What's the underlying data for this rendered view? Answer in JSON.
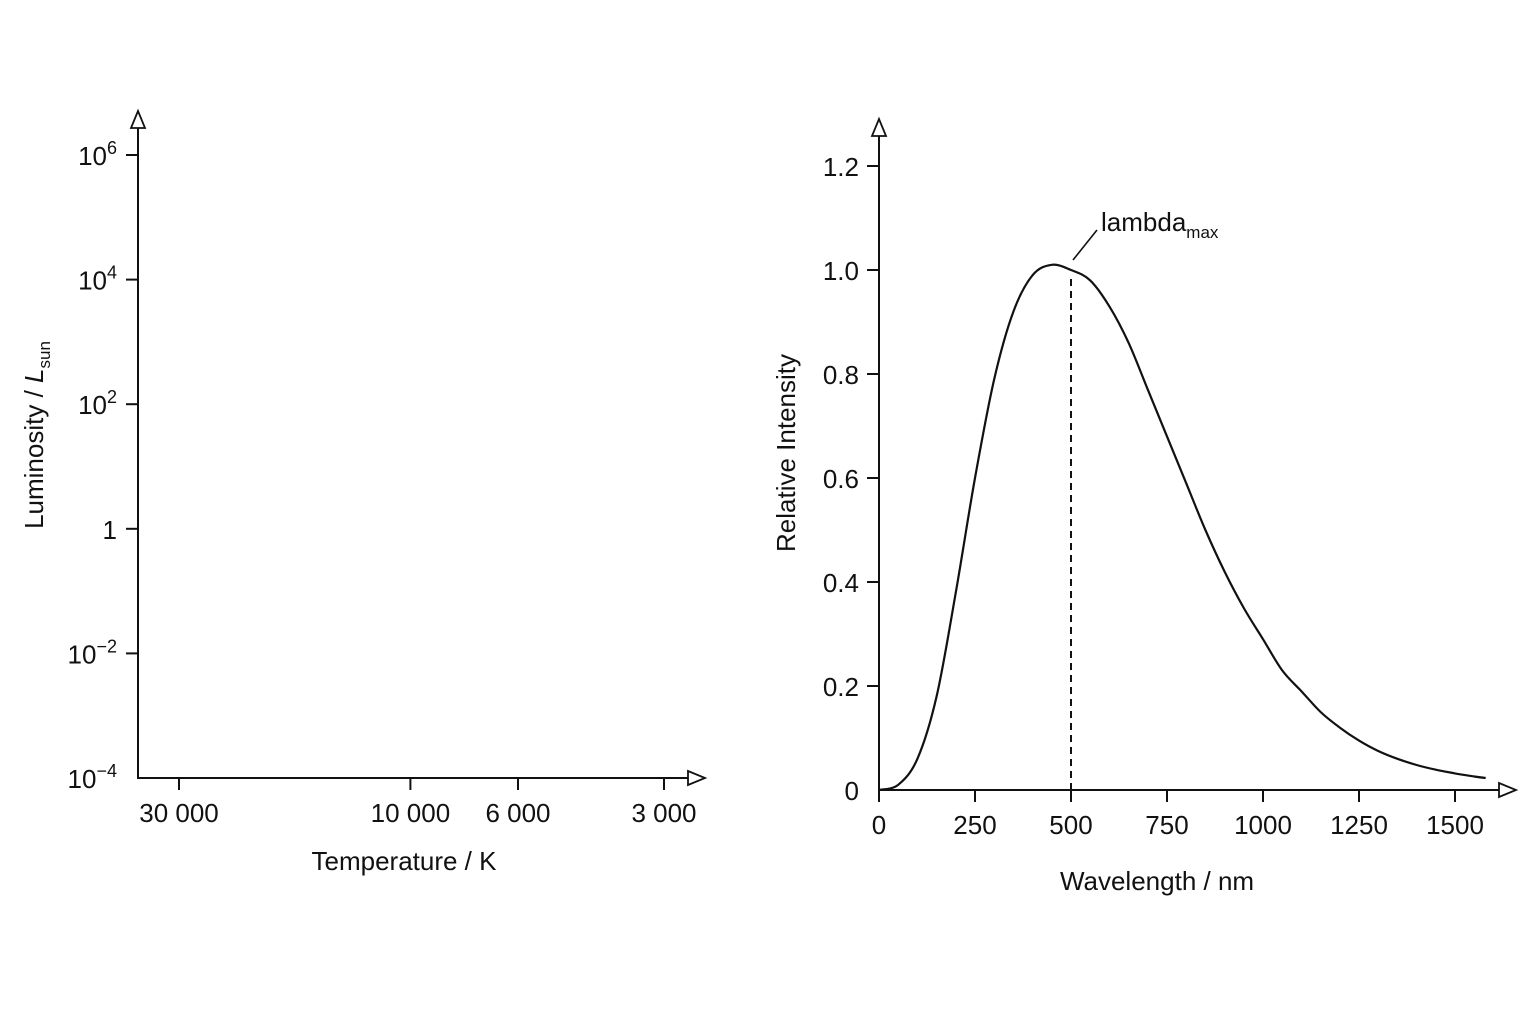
{
  "chart_data": [
    {
      "type": "line",
      "title": "",
      "xlabel": "Temperature / K",
      "ylabel": {
        "base": "Luminosity / ",
        "symbol": "L",
        "subscript": "sun"
      },
      "x_scale": "log",
      "x_reversed": true,
      "y_scale": "log",
      "xlim": [
        40000,
        2800
      ],
      "ylim": [
        0.0001,
        1000000
      ],
      "x_ticks": [
        {
          "value": 30000,
          "label": "30 000"
        },
        {
          "value": 10000,
          "label": "10 000"
        },
        {
          "value": 6000,
          "label": "6 000"
        },
        {
          "value": 3000,
          "label": "3 000"
        }
      ],
      "y_ticks": [
        {
          "value": 1000000,
          "base": "10",
          "exp": "6"
        },
        {
          "value": 10000,
          "base": "10",
          "exp": "4"
        },
        {
          "value": 100,
          "base": "10",
          "exp": "2"
        },
        {
          "value": 1,
          "base": "1",
          "exp": ""
        },
        {
          "value": 0.01,
          "base": "10",
          "exp": "−2"
        },
        {
          "value": 0.0001,
          "base": "10",
          "exp": "−4"
        }
      ],
      "series": [],
      "grid": false
    },
    {
      "type": "line",
      "title": "",
      "xlabel": "Wavelength / nm",
      "ylabel": "Relative Intensity",
      "xlim": [
        0,
        1600
      ],
      "ylim": [
        0,
        1.2
      ],
      "x_ticks": [
        0,
        250,
        500,
        750,
        1000,
        1250,
        1500
      ],
      "y_ticks": [
        {
          "value": 0,
          "label": "0"
        },
        {
          "value": 0.2,
          "label": "0.2"
        },
        {
          "value": 0.4,
          "label": "0.4"
        },
        {
          "value": 0.6,
          "label": "0.6"
        },
        {
          "value": 0.8,
          "label": "0.8"
        },
        {
          "value": 1.0,
          "label": "1.0"
        },
        {
          "value": 1.2,
          "label": "1.2"
        }
      ],
      "grid": false,
      "series": [
        {
          "x": [
            0,
            50,
            100,
            150,
            200,
            250,
            300,
            350,
            400,
            450,
            500,
            550,
            600,
            650,
            700,
            750,
            800,
            850,
            900,
            950,
            1000,
            1050,
            1100,
            1150,
            1200,
            1250,
            1300,
            1350,
            1400,
            1450,
            1500,
            1550,
            1580
          ],
          "y": [
            0,
            0.01,
            0.06,
            0.18,
            0.38,
            0.6,
            0.79,
            0.92,
            0.99,
            1.01,
            1.0,
            0.98,
            0.93,
            0.86,
            0.77,
            0.68,
            0.59,
            0.5,
            0.42,
            0.35,
            0.29,
            0.23,
            0.19,
            0.15,
            0.12,
            0.095,
            0.075,
            0.06,
            0.048,
            0.039,
            0.032,
            0.026,
            0.023
          ]
        }
      ],
      "annotations": [
        {
          "type": "vline",
          "x": 500,
          "y_top": 1.0,
          "style": "dashed"
        },
        {
          "type": "label",
          "base": "lambda",
          "subscript": "max",
          "x": 510,
          "y": 1.0
        }
      ]
    }
  ]
}
